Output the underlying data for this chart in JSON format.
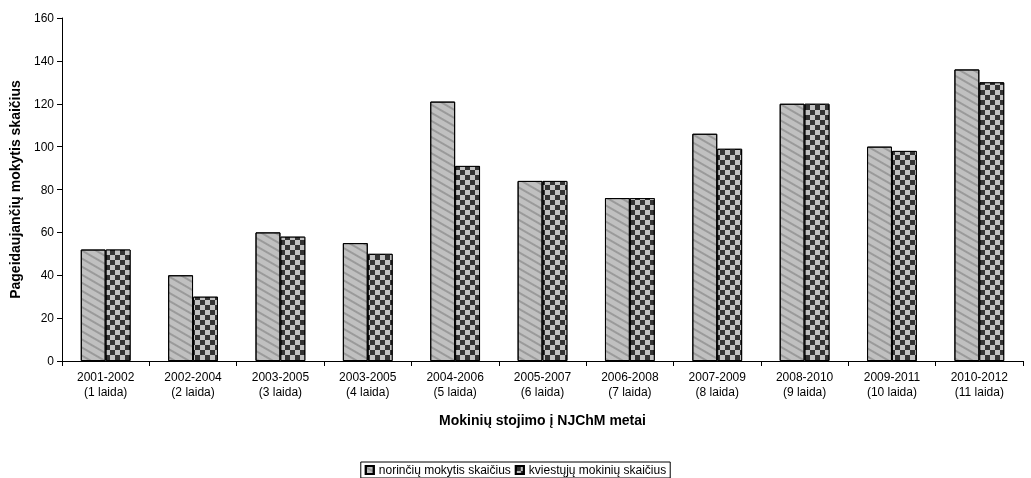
{
  "chart_data": {
    "type": "bar",
    "xlabel": "Mokinių stojimo į NJChM metai",
    "ylabel": "Pageidaujančių mokytis skaičius",
    "categories": [
      "2001-2002\n(1 laida)",
      "2002-2004\n(2 laida)",
      "2003-2005\n(3 laida)",
      "2003-2005\n(4 laida)",
      "2004-2006\n(5 laida)",
      "2005-2007\n(6 laida)",
      "2006-2008\n(7 laida)",
      "2007-2009\n(8 laida)",
      "2008-2010\n(9 laida)",
      "2009-2011\n(10 laida)",
      "2010-2012\n(11 laida)"
    ],
    "series": [
      {
        "name": "norinčių mokytis skaičius",
        "color": "#c0c0c0",
        "values": [
          52,
          40,
          60,
          55,
          121,
          84,
          76,
          106,
          120,
          100,
          136
        ]
      },
      {
        "name": "kviestųjų mokinių skaičius",
        "color": "#333333",
        "values": [
          52,
          30,
          58,
          50,
          91,
          84,
          76,
          99,
          120,
          98,
          130
        ]
      }
    ],
    "ylim": [
      0,
      160
    ],
    "yticks": [
      0,
      20,
      40,
      60,
      80,
      100,
      120,
      140,
      160
    ],
    "grid": false,
    "legend": "bottom"
  }
}
